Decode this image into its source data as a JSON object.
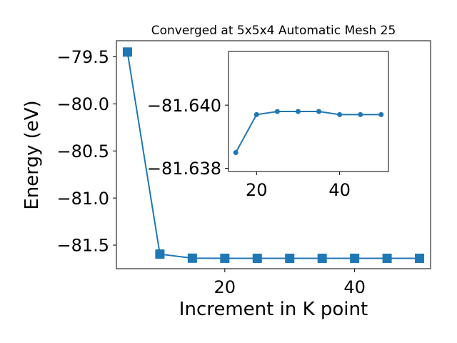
{
  "chart_data": [
    {
      "type": "line",
      "title": "Converged at 5x5x4 Automatic Mesh 25",
      "xlabel": "Increment in K point",
      "ylabel": "Energy (eV)",
      "marker": "square",
      "color": "#1f77b4",
      "x": [
        5,
        10,
        15,
        20,
        25,
        30,
        35,
        40,
        45,
        50
      ],
      "y": [
        -79.45,
        -81.595,
        -81.6385,
        -81.6397,
        -81.6398,
        -81.6398,
        -81.6398,
        -81.6397,
        -81.6397,
        -81.6397
      ],
      "xlim": [
        3.3,
        51.7
      ],
      "ylim": [
        -81.75,
        -79.33
      ],
      "xticks": [
        20,
        40
      ],
      "yticks": [
        -79.5,
        -80.0,
        -80.5,
        -81.0,
        -81.5
      ],
      "xtick_labels": [
        "20",
        "40"
      ],
      "ytick_labels": [
        "−79.5",
        "−80.0",
        "−80.5",
        "−81.0",
        "−81.5"
      ]
    },
    {
      "type": "line",
      "role": "inset",
      "marker": "circle",
      "color": "#1f77b4",
      "x": [
        15,
        20,
        25,
        30,
        35,
        40,
        45,
        50
      ],
      "y": [
        -81.6385,
        -81.6397,
        -81.6398,
        -81.6398,
        -81.6398,
        -81.6397,
        -81.6397,
        -81.6397
      ],
      "xlim": [
        13.25,
        51.75
      ],
      "ylim": [
        -81.6379,
        -81.6417
      ],
      "xticks": [
        20,
        40
      ],
      "yticks": [
        -81.64,
        -81.638
      ],
      "xtick_labels": [
        "20",
        "40"
      ],
      "ytick_labels": [
        "−81.640",
        "−81.638"
      ]
    }
  ]
}
